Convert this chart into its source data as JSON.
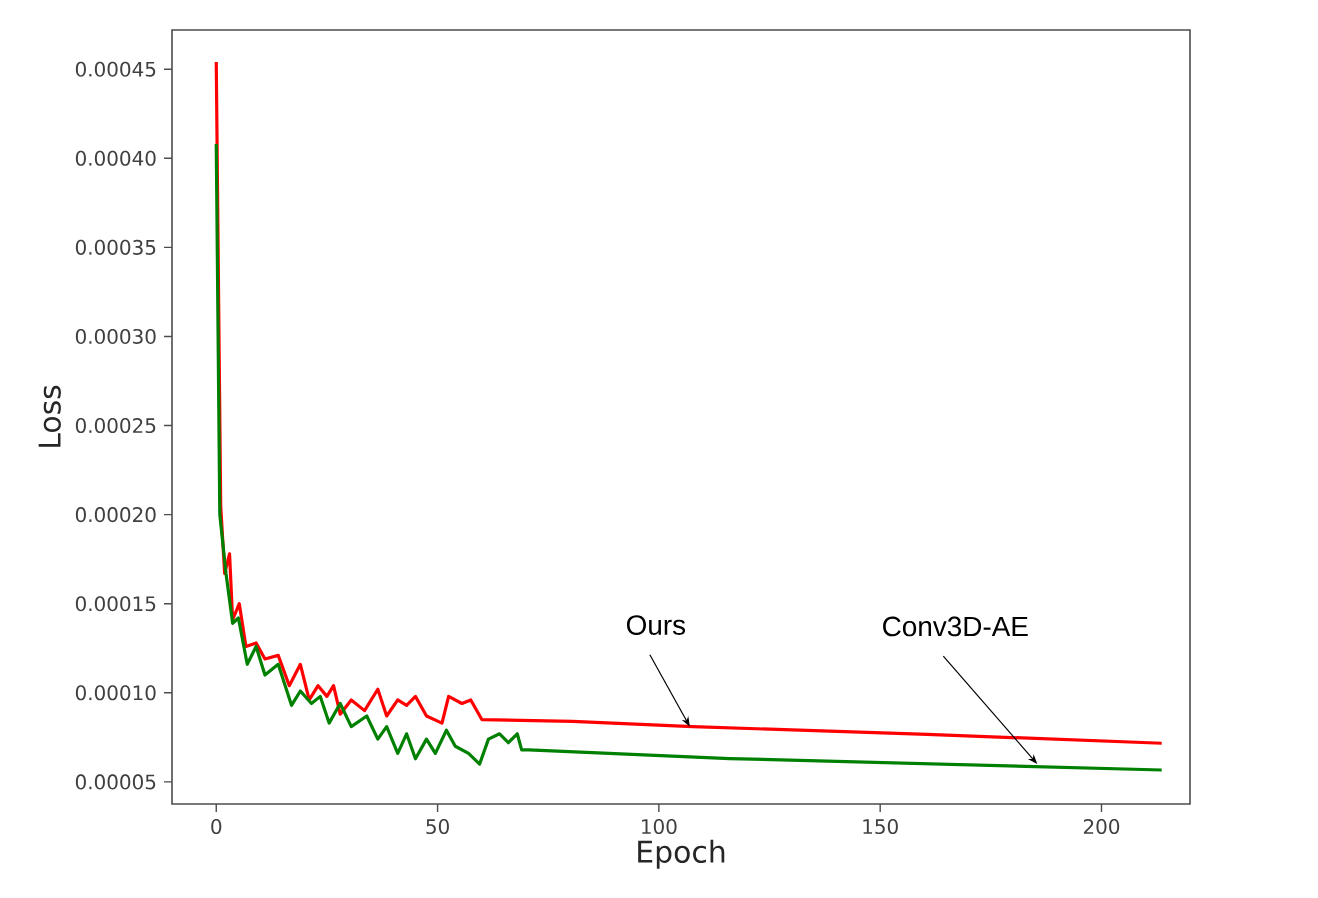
{
  "chart_data": {
    "type": "line",
    "xlabel": "Epoch",
    "ylabel": "Loss",
    "xlim": [
      -10,
      220
    ],
    "ylim": [
      3.76e-05,
      0.000472
    ],
    "xticks": [
      0,
      50,
      100,
      150,
      200
    ],
    "yticks": [
      {
        "value": 5e-05,
        "label": "0.00005"
      },
      {
        "value": 0.0001,
        "label": "0.00010"
      },
      {
        "value": 0.00015,
        "label": "0.00015"
      },
      {
        "value": 0.0002,
        "label": "0.00020"
      },
      {
        "value": 0.00025,
        "label": "0.00025"
      },
      {
        "value": 0.0003,
        "label": "0.00030"
      },
      {
        "value": 0.00035,
        "label": "0.00035"
      },
      {
        "value": 0.0004,
        "label": "0.00040"
      },
      {
        "value": 0.00045,
        "label": "0.00045"
      }
    ],
    "grid": false,
    "marker": "none",
    "line_style": "solid",
    "series": [
      {
        "color": "#ff0000",
        "x": [
          0,
          1,
          1.9,
          3,
          3.7,
          5.2,
          6.7,
          9,
          11,
          14,
          16.5,
          19,
          21,
          23,
          25,
          26.5,
          28,
          30.5,
          33.5,
          36.5,
          38.5,
          41,
          43,
          45,
          47.5,
          51,
          52.5,
          55.5,
          57.5,
          60,
          80.5,
          107.6,
          160.6,
          213.6
        ],
        "values": [
          0.000454,
          0.000205,
          0.000167,
          0.000178,
          0.000141,
          0.00015,
          0.000126,
          0.000128,
          0.000119,
          0.000121,
          0.000104,
          0.000116,
          9.6e-05,
          0.000104,
          9.8e-05,
          0.000104,
          8.8e-05,
          9.6e-05,
          9e-05,
          0.000102,
          8.7e-05,
          9.6e-05,
          9.3e-05,
          9.8e-05,
          8.7e-05,
          8.3e-05,
          9.8e-05,
          9.4e-05,
          9.6e-05,
          8.5e-05,
          8.4e-05,
          8.1e-05,
          7.67e-05,
          7.17e-05
        ]
      },
      {
        "color": "#008000",
        "x": [
          0,
          0.8,
          2.2,
          3.7,
          5,
          7,
          9,
          11,
          14,
          17,
          19,
          21.5,
          23.5,
          25.5,
          28,
          30.5,
          34,
          36.5,
          38.5,
          41,
          43,
          45,
          47.5,
          49.5,
          52,
          54,
          57,
          59.5,
          61.5,
          64,
          66,
          68,
          69,
          70.6,
          116,
          213.6
        ],
        "values": [
          0.000408,
          0.0002,
          0.000167,
          0.000139,
          0.000142,
          0.000116,
          0.000126,
          0.00011,
          0.000116,
          9.3e-05,
          0.000101,
          9.4e-05,
          9.8e-05,
          8.3e-05,
          9.4e-05,
          8.1e-05,
          8.7e-05,
          7.4e-05,
          8.1e-05,
          6.6e-05,
          7.7e-05,
          6.3e-05,
          7.4e-05,
          6.6e-05,
          7.9e-05,
          7e-05,
          6.6e-05,
          6e-05,
          7.4e-05,
          7.7e-05,
          7.2e-05,
          7.7e-05,
          6.8e-05,
          6.8e-05,
          6.31e-05,
          5.67e-05
        ]
      }
    ],
    "annotations": [
      {
        "text": "Ours",
        "x": 107,
        "y": 8.1e-05
      },
      {
        "text": "Conv3D-AE",
        "x": 185.5,
        "y": 6e-05
      }
    ]
  }
}
